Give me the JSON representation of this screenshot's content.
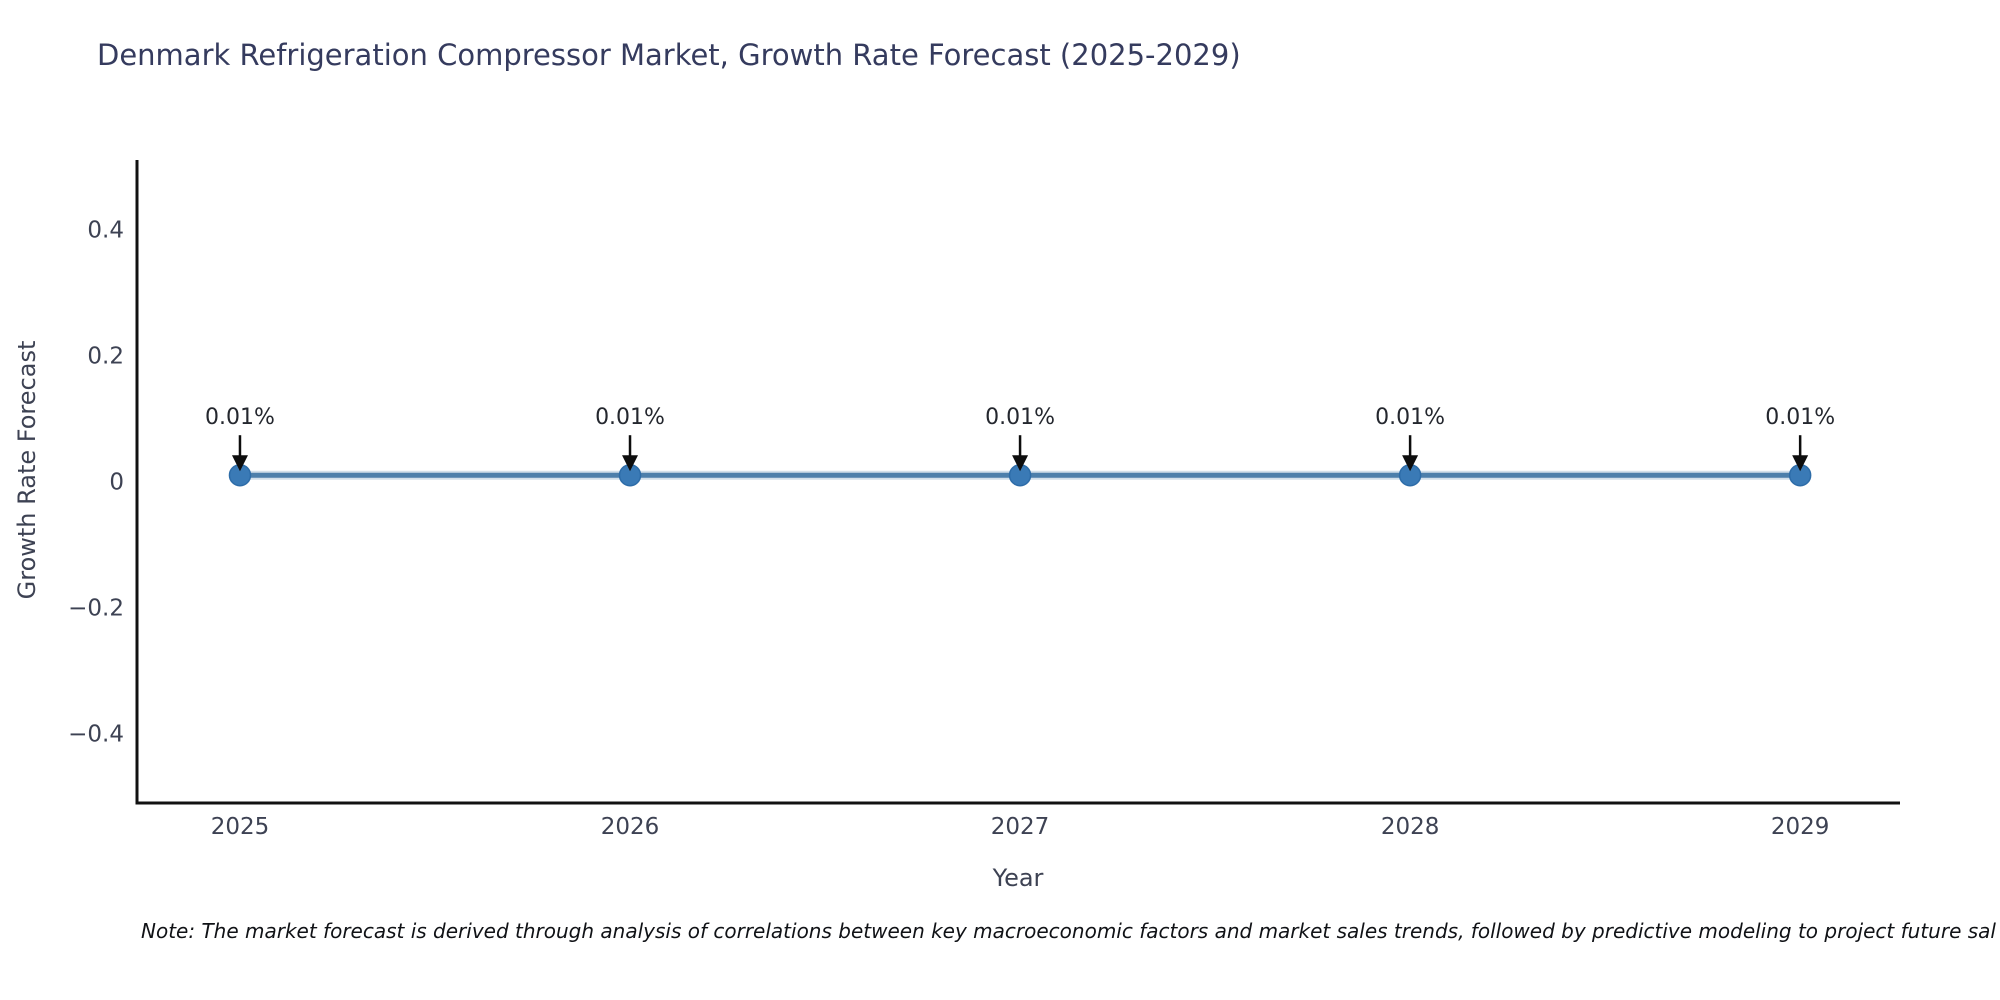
{
  "title": "Denmark Refrigeration Compressor Market, Growth Rate Forecast (2025-2029)",
  "note": "Note: The market forecast is derived through analysis of correlations between key macroeconomic factors and market sales trends, followed by predictive modeling to project future sal",
  "chart_data": {
    "type": "line",
    "title": "Denmark Refrigeration Compressor Market, Growth Rate Forecast (2025-2029)",
    "xlabel": "Year",
    "ylabel": "Growth Rate Forecast",
    "x": [
      2025,
      2026,
      2027,
      2028,
      2029
    ],
    "series": [
      {
        "name": "Growth Rate Forecast",
        "values": [
          0.01,
          0.01,
          0.01,
          0.01,
          0.01
        ]
      }
    ],
    "point_labels": [
      "0.01%",
      "0.01%",
      "0.01%",
      "0.01%",
      "0.01%"
    ],
    "xlim": [
      2024.736,
      2029.256
    ],
    "ylim": [
      -0.51,
      0.51
    ],
    "xticks": [
      2025,
      2026,
      2027,
      2028,
      2029
    ],
    "xtick_labels": [
      "2025",
      "2026",
      "2027",
      "2028",
      "2029"
    ],
    "yticks": [
      0.4,
      0.2,
      0,
      -0.2,
      -0.4
    ],
    "ytick_labels": [
      "0.4",
      "0.2",
      "0",
      "−0.2",
      "−0.4"
    ],
    "grid": false,
    "legend": "none",
    "colors": {
      "line": "#4d7fab",
      "marker": "#3a7ab6",
      "marker_edge": "#2d6ca8",
      "axis": "#111111",
      "tick": "#3d4253",
      "annotation": "#24272e",
      "arrow": "#0d0d0d",
      "title": "#353b5e"
    }
  }
}
